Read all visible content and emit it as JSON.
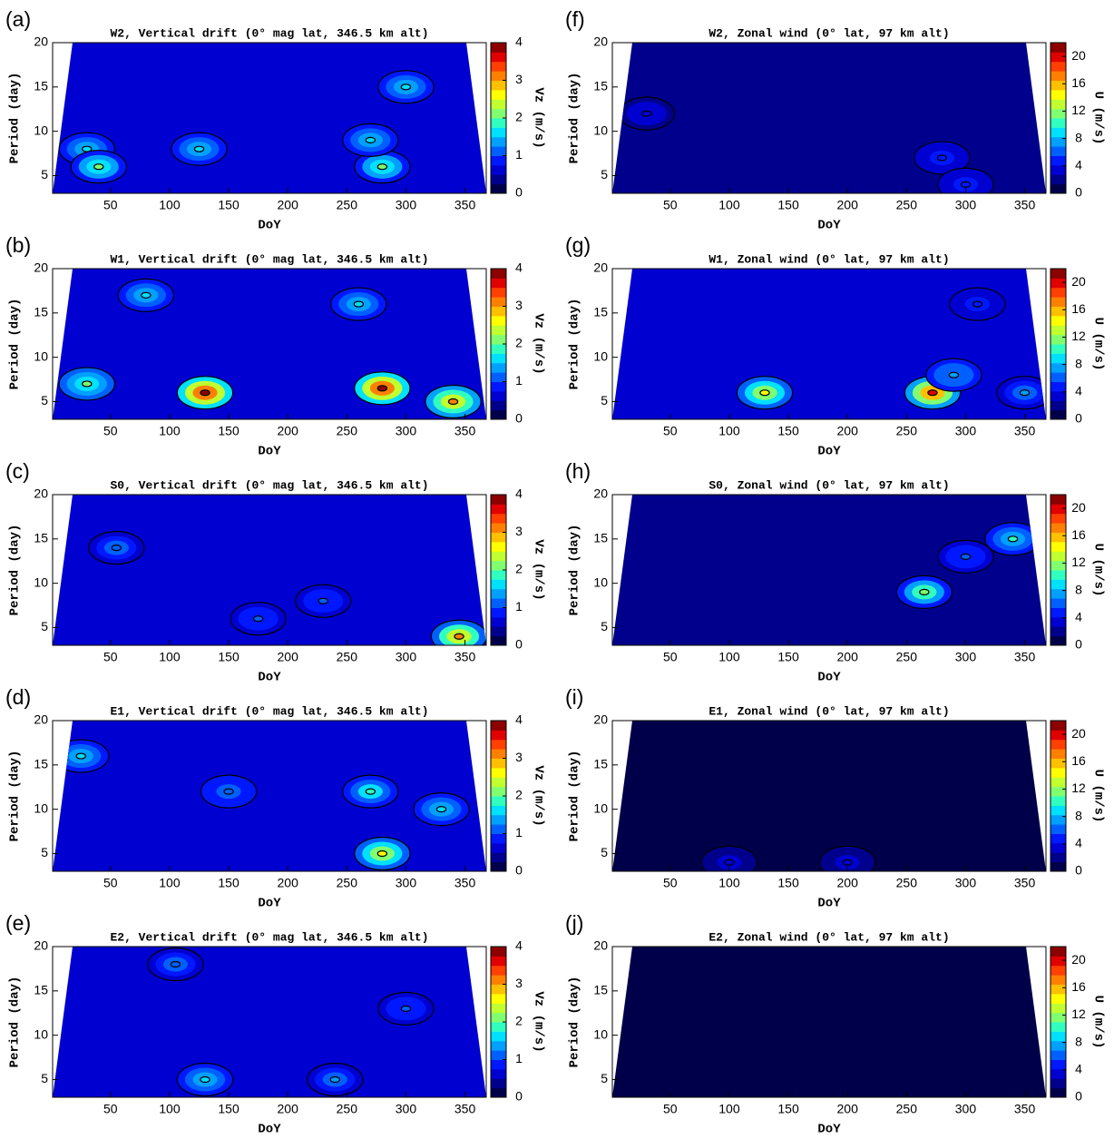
{
  "chart_data": [
    {
      "type": "contour",
      "panel": "(a)",
      "title": "W2, Vertical drift (0° mag lat, 346.5 km alt)",
      "xlabel": "DoY",
      "ylabel": "Period (day)",
      "colorbar_label": "Vz (m/s)",
      "xlim": [
        1,
        368
      ],
      "ylim": [
        3,
        20
      ],
      "xticks": [
        50,
        100,
        150,
        200,
        250,
        300,
        350
      ],
      "yticks": [
        5,
        10,
        15,
        20
      ],
      "clim": [
        0,
        4
      ],
      "cticks": [
        0,
        1,
        2,
        3,
        4
      ],
      "base_value": 0.6,
      "peaks": {
        "x": [
          30,
          40,
          125,
          280,
          300,
          270
        ],
        "y": [
          8,
          6,
          8,
          6,
          15,
          9
        ],
        "values": [
          1.5,
          2,
          1.5,
          2,
          1.5,
          1.5
        ]
      }
    },
    {
      "type": "contour",
      "panel": "(b)",
      "title": "W1, Vertical drift (0° mag lat, 346.5 km alt)",
      "xlabel": "DoY",
      "ylabel": "Period (day)",
      "colorbar_label": "Vz (m/s)",
      "xlim": [
        1,
        368
      ],
      "ylim": [
        3,
        20
      ],
      "xticks": [
        50,
        100,
        150,
        200,
        250,
        300,
        350
      ],
      "yticks": [
        5,
        10,
        15,
        20
      ],
      "clim": [
        0,
        4
      ],
      "cticks": [
        0,
        1,
        2,
        3,
        4
      ],
      "base_value": 0.7,
      "peaks": {
        "x": [
          130,
          280,
          80,
          260,
          30,
          340
        ],
        "y": [
          6,
          6.5,
          17,
          16,
          7,
          5
        ],
        "values": [
          4,
          4,
          1.5,
          1.5,
          2,
          3
        ]
      }
    },
    {
      "type": "contour",
      "panel": "(c)",
      "title": "S0, Vertical drift (0° mag lat, 346.5 km alt)",
      "xlabel": "DoY",
      "ylabel": "Period (day)",
      "colorbar_label": "Vz (m/s)",
      "xlim": [
        1,
        368
      ],
      "ylim": [
        3,
        20
      ],
      "xticks": [
        50,
        100,
        150,
        200,
        250,
        300,
        350
      ],
      "yticks": [
        5,
        10,
        15,
        20
      ],
      "clim": [
        0,
        4
      ],
      "cticks": [
        0,
        1,
        2,
        3,
        4
      ],
      "base_value": 0.5,
      "peaks": {
        "x": [
          55,
          230,
          345,
          175
        ],
        "y": [
          14,
          8,
          4,
          6
        ],
        "values": [
          1.2,
          1,
          3,
          1
        ]
      }
    },
    {
      "type": "contour",
      "panel": "(d)",
      "title": "E1, Vertical drift (0° mag lat, 346.5 km alt)",
      "xlabel": "DoY",
      "ylabel": "Period (day)",
      "colorbar_label": "Vz (m/s)",
      "xlim": [
        1,
        368
      ],
      "ylim": [
        3,
        20
      ],
      "xticks": [
        50,
        100,
        150,
        200,
        250,
        300,
        350
      ],
      "yticks": [
        5,
        10,
        15,
        20
      ],
      "clim": [
        0,
        4
      ],
      "cticks": [
        0,
        1,
        2,
        3,
        4
      ],
      "base_value": 0.6,
      "peaks": {
        "x": [
          25,
          270,
          280,
          150,
          330
        ],
        "y": [
          16,
          12,
          5,
          12,
          10
        ],
        "values": [
          1.5,
          1.8,
          2.5,
          1.2,
          1.5
        ]
      }
    },
    {
      "type": "contour",
      "panel": "(e)",
      "title": "E2, Vertical drift (0° mag lat, 346.5 km alt)",
      "xlabel": "DoY",
      "ylabel": "Period (day)",
      "colorbar_label": "Vz (m/s)",
      "xlim": [
        1,
        368
      ],
      "ylim": [
        3,
        20
      ],
      "xticks": [
        50,
        100,
        150,
        200,
        250,
        300,
        350
      ],
      "yticks": [
        5,
        10,
        15,
        20
      ],
      "clim": [
        0,
        4
      ],
      "cticks": [
        0,
        1,
        2,
        3,
        4
      ],
      "base_value": 0.5,
      "peaks": {
        "x": [
          105,
          300,
          130,
          240
        ],
        "y": [
          18,
          13,
          5,
          5
        ],
        "values": [
          1.2,
          1,
          1.5,
          1.3
        ]
      }
    },
    {
      "type": "contour",
      "panel": "(f)",
      "title": "W2, Zonal wind (0° lat, 97 km alt)",
      "xlabel": "DoY",
      "ylabel": "Period (day)",
      "colorbar_label": "U (m/s)",
      "xlim": [
        1,
        368
      ],
      "ylim": [
        3,
        20
      ],
      "xticks": [
        50,
        100,
        150,
        200,
        250,
        300,
        350
      ],
      "yticks": [
        5,
        10,
        15,
        20
      ],
      "clim": [
        0,
        22
      ],
      "cticks": [
        0,
        4,
        8,
        12,
        16,
        20
      ],
      "base_value": 2,
      "peaks": {
        "x": [
          280,
          300,
          30
        ],
        "y": [
          7,
          4,
          12
        ],
        "values": [
          5,
          5,
          4
        ]
      }
    },
    {
      "type": "contour",
      "panel": "(g)",
      "title": "W1, Zonal wind (0° lat, 97 km alt)",
      "xlabel": "DoY",
      "ylabel": "Period (day)",
      "colorbar_label": "U (m/s)",
      "xlim": [
        1,
        368
      ],
      "ylim": [
        3,
        20
      ],
      "xticks": [
        50,
        100,
        150,
        200,
        250,
        300,
        350
      ],
      "yticks": [
        5,
        10,
        15,
        20
      ],
      "clim": [
        0,
        22
      ],
      "cticks": [
        0,
        4,
        8,
        12,
        16,
        20
      ],
      "base_value": 3,
      "peaks": {
        "x": [
          130,
          272,
          290,
          350,
          310
        ],
        "y": [
          6,
          6,
          8,
          6,
          16
        ],
        "values": [
          14,
          20,
          8,
          7,
          5
        ]
      }
    },
    {
      "type": "contour",
      "panel": "(h)",
      "title": "S0, Zonal wind (0° lat, 97 km alt)",
      "xlabel": "DoY",
      "ylabel": "Period (day)",
      "colorbar_label": "U (m/s)",
      "xlim": [
        1,
        368
      ],
      "ylim": [
        3,
        20
      ],
      "xticks": [
        50,
        100,
        150,
        200,
        250,
        300,
        350
      ],
      "yticks": [
        5,
        10,
        15,
        20
      ],
      "clim": [
        0,
        22
      ],
      "cticks": [
        0,
        4,
        8,
        12,
        16,
        20
      ],
      "base_value": 2.5,
      "peaks": {
        "x": [
          265,
          340,
          300
        ],
        "y": [
          9,
          15,
          13
        ],
        "values": [
          12,
          10,
          6
        ]
      }
    },
    {
      "type": "contour",
      "panel": "(i)",
      "title": "E1, Zonal wind (0° lat, 97 km alt)",
      "xlabel": "DoY",
      "ylabel": "Period (day)",
      "colorbar_label": "U (m/s)",
      "xlim": [
        1,
        368
      ],
      "ylim": [
        3,
        20
      ],
      "xticks": [
        50,
        100,
        150,
        200,
        250,
        300,
        350
      ],
      "yticks": [
        5,
        10,
        15,
        20
      ],
      "clim": [
        0,
        22
      ],
      "cticks": [
        0,
        4,
        8,
        12,
        16,
        20
      ],
      "base_value": 1,
      "peaks": {
        "x": [
          200,
          100
        ],
        "y": [
          4,
          4
        ],
        "values": [
          4,
          4
        ]
      }
    },
    {
      "type": "contour",
      "panel": "(j)",
      "title": "E2, Zonal wind (0° lat, 97 km alt)",
      "xlabel": "DoY",
      "ylabel": "Period (day)",
      "colorbar_label": "U (m/s)",
      "xlim": [
        1,
        368
      ],
      "ylim": [
        3,
        20
      ],
      "xticks": [
        50,
        100,
        150,
        200,
        250,
        300,
        350
      ],
      "yticks": [
        5,
        10,
        15,
        20
      ],
      "clim": [
        0,
        22
      ],
      "cticks": [
        0,
        4,
        8,
        12,
        16,
        20
      ],
      "base_value": 0.8,
      "peaks": {
        "x": [],
        "y": [],
        "values": []
      }
    }
  ],
  "colormap": [
    "#00004a",
    "#00008c",
    "#0000d0",
    "#0018ff",
    "#0060ff",
    "#00a0ff",
    "#00e0ff",
    "#30ffc0",
    "#80ff70",
    "#c0ff30",
    "#ffff00",
    "#ffc000",
    "#ff8000",
    "#ff4000",
    "#e00000",
    "#8c0000"
  ]
}
